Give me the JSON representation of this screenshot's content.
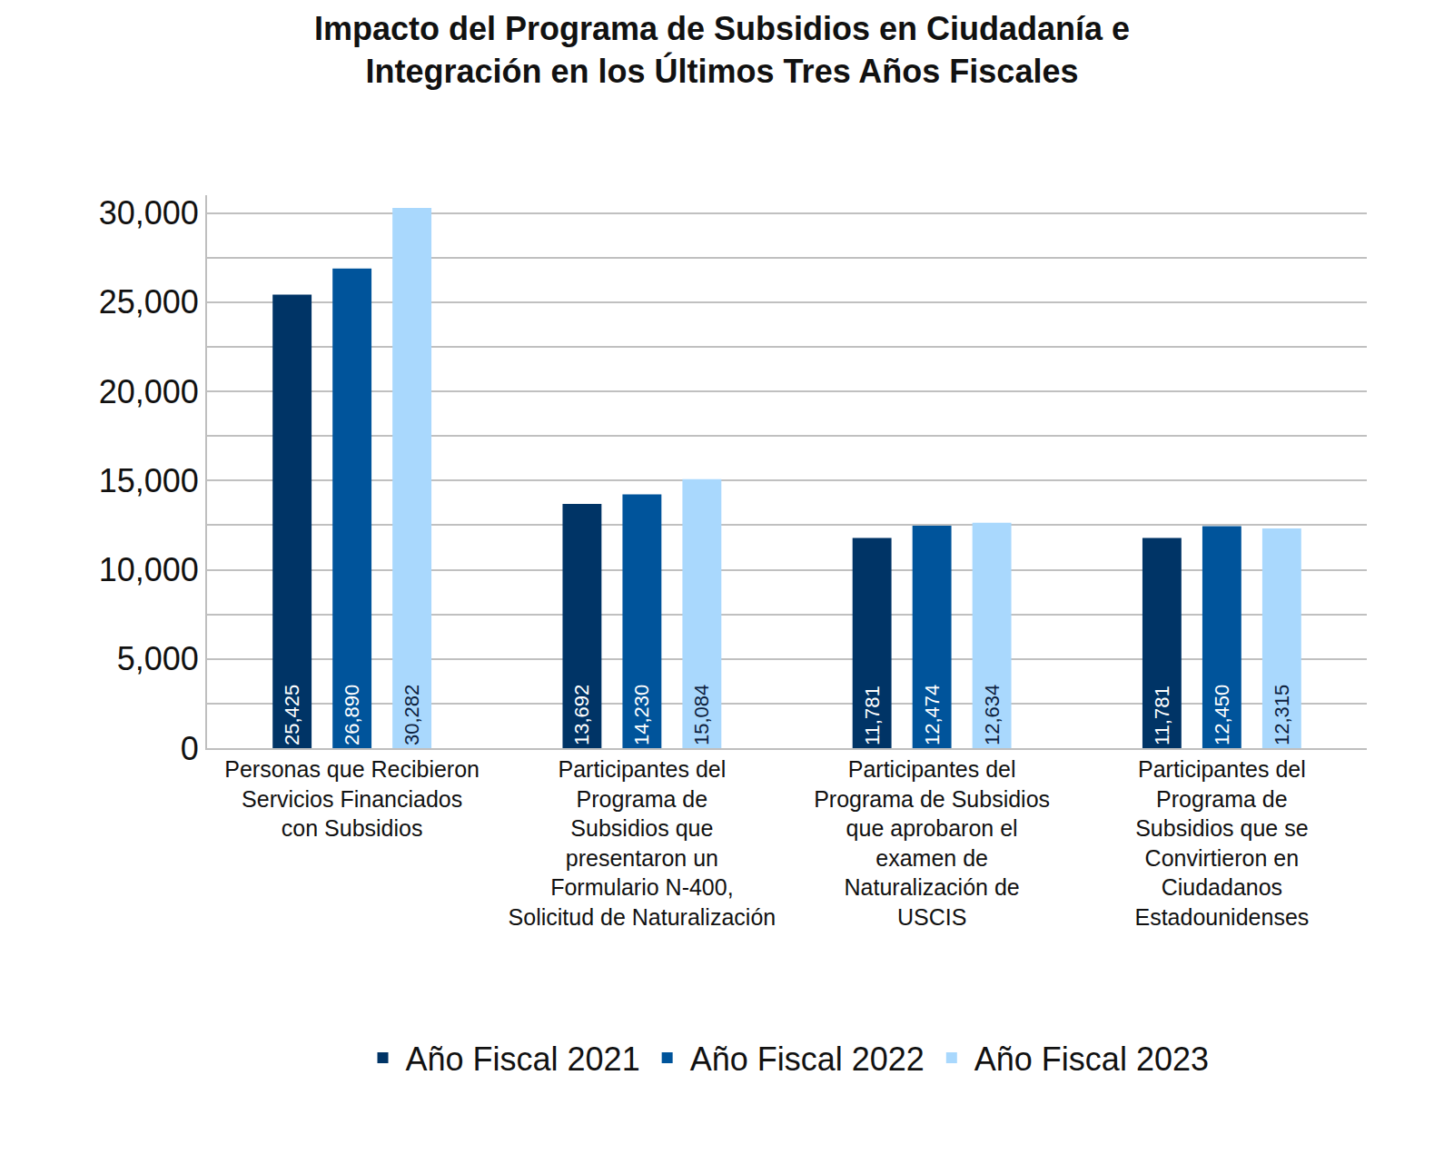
{
  "chart_data": {
    "type": "bar",
    "title": "Impacto del Programa de Subsidios en Ciudadanía e\nIntegración en los Últimos Tres Años Fiscales",
    "categories": [
      "Personas que Recibieron\nServicios Financiados\ncon Subsidios",
      "Participantes del\nPrograma de\nSubsidios que\npresentaron un\nFormulario N-400,\nSolicitud de Naturalización",
      "Participantes del\nPrograma de Subsidios\nque aprobaron el\nexamen de\nNaturalización de\nUSCIS",
      "Participantes del\nPrograma de\nSubsidios que se\nConvirtieron en\nCiudadanos\nEstadounidenses"
    ],
    "series": [
      {
        "name": "Año Fiscal 2021",
        "color": "#003466",
        "values": [
          25425,
          13692,
          11781,
          11781
        ],
        "value_labels": [
          "25,425",
          "13,692",
          "11,781",
          "11,781"
        ]
      },
      {
        "name": "Año Fiscal 2022",
        "color": "#00549b",
        "values": [
          26890,
          14230,
          12474,
          12450
        ],
        "value_labels": [
          "26,890",
          "14,230",
          "12,474",
          "12,450"
        ]
      },
      {
        "name": "Año Fiscal 2023",
        "color": "#a9d8fd",
        "values": [
          30282,
          15084,
          12634,
          12315
        ],
        "value_labels": [
          "30,282",
          "15,084",
          "12,634",
          "12,315"
        ]
      }
    ],
    "ylim": [
      0,
      31000
    ],
    "yticks": [
      {
        "value": 0,
        "label": "0"
      },
      {
        "value": 5000,
        "label": "5,000"
      },
      {
        "value": 10000,
        "label": "10,000"
      },
      {
        "value": 15000,
        "label": "15,000"
      },
      {
        "value": 20000,
        "label": "20,000"
      },
      {
        "value": 25000,
        "label": "25,000"
      },
      {
        "value": 30000,
        "label": "30,000"
      }
    ],
    "grid": true,
    "data_labels": true,
    "legend": "bottom"
  }
}
